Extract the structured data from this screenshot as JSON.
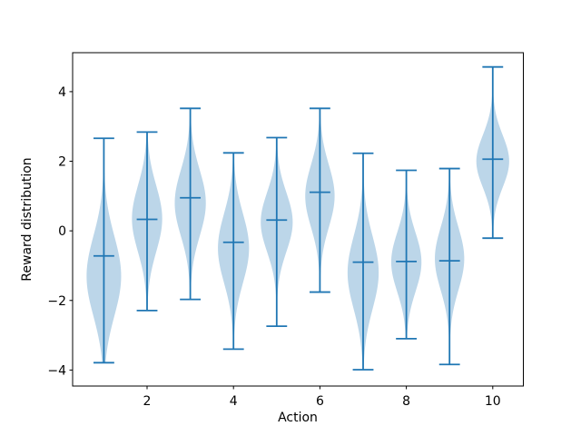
{
  "chart_data": {
    "type": "violin",
    "title": "",
    "xlabel": "Action",
    "ylabel": "Reward distribution",
    "x_ticks": [
      2,
      4,
      6,
      8,
      10
    ],
    "x_tick_labels": [
      "2",
      "4",
      "6",
      "8",
      "10"
    ],
    "y_ticks": [
      -4,
      -2,
      0,
      2,
      4
    ],
    "y_tick_labels": [
      "−4",
      "−2",
      "0",
      "2",
      "4"
    ],
    "xlim": [
      0.277,
      10.708
    ],
    "ylim": [
      -4.46,
      5.12
    ],
    "grid": false,
    "legend": null,
    "n_violins": 10,
    "series": [
      {
        "action": 1,
        "min": -3.79,
        "max": 2.66,
        "median": -0.72,
        "kde_peak": -1.3,
        "kde_sigma": 1.15,
        "max_half_width": 0.4
      },
      {
        "action": 2,
        "min": -2.29,
        "max": 2.84,
        "median": 0.33,
        "kde_peak": 0.35,
        "kde_sigma": 0.95,
        "max_half_width": 0.35
      },
      {
        "action": 3,
        "min": -1.97,
        "max": 3.52,
        "median": 0.95,
        "kde_peak": 0.8,
        "kde_sigma": 0.95,
        "max_half_width": 0.36
      },
      {
        "action": 4,
        "min": -3.4,
        "max": 2.24,
        "median": -0.33,
        "kde_peak": -0.5,
        "kde_sigma": 1.0,
        "max_half_width": 0.36
      },
      {
        "action": 5,
        "min": -2.74,
        "max": 2.68,
        "median": 0.31,
        "kde_peak": 0.25,
        "kde_sigma": 0.85,
        "max_half_width": 0.37
      },
      {
        "action": 6,
        "min": -1.76,
        "max": 3.52,
        "median": 1.11,
        "kde_peak": 1.0,
        "kde_sigma": 0.9,
        "max_half_width": 0.34
      },
      {
        "action": 7,
        "min": -3.99,
        "max": 2.23,
        "median": -0.9,
        "kde_peak": -1.2,
        "kde_sigma": 1.05,
        "max_half_width": 0.36
      },
      {
        "action": 8,
        "min": -3.1,
        "max": 1.74,
        "median": -0.88,
        "kde_peak": -0.9,
        "kde_sigma": 0.85,
        "max_half_width": 0.35
      },
      {
        "action": 9,
        "min": -3.84,
        "max": 1.79,
        "median": -0.86,
        "kde_peak": -0.8,
        "kde_sigma": 0.9,
        "max_half_width": 0.34
      },
      {
        "action": 10,
        "min": -0.21,
        "max": 4.71,
        "median": 2.06,
        "kde_peak": 2.0,
        "kde_sigma": 0.75,
        "max_half_width": 0.38
      }
    ]
  },
  "colors": {
    "violin_line": "#2077b4",
    "violin_fill": "#bcd6e9",
    "spine": "#000000",
    "text": "#000000",
    "background": "#ffffff"
  }
}
